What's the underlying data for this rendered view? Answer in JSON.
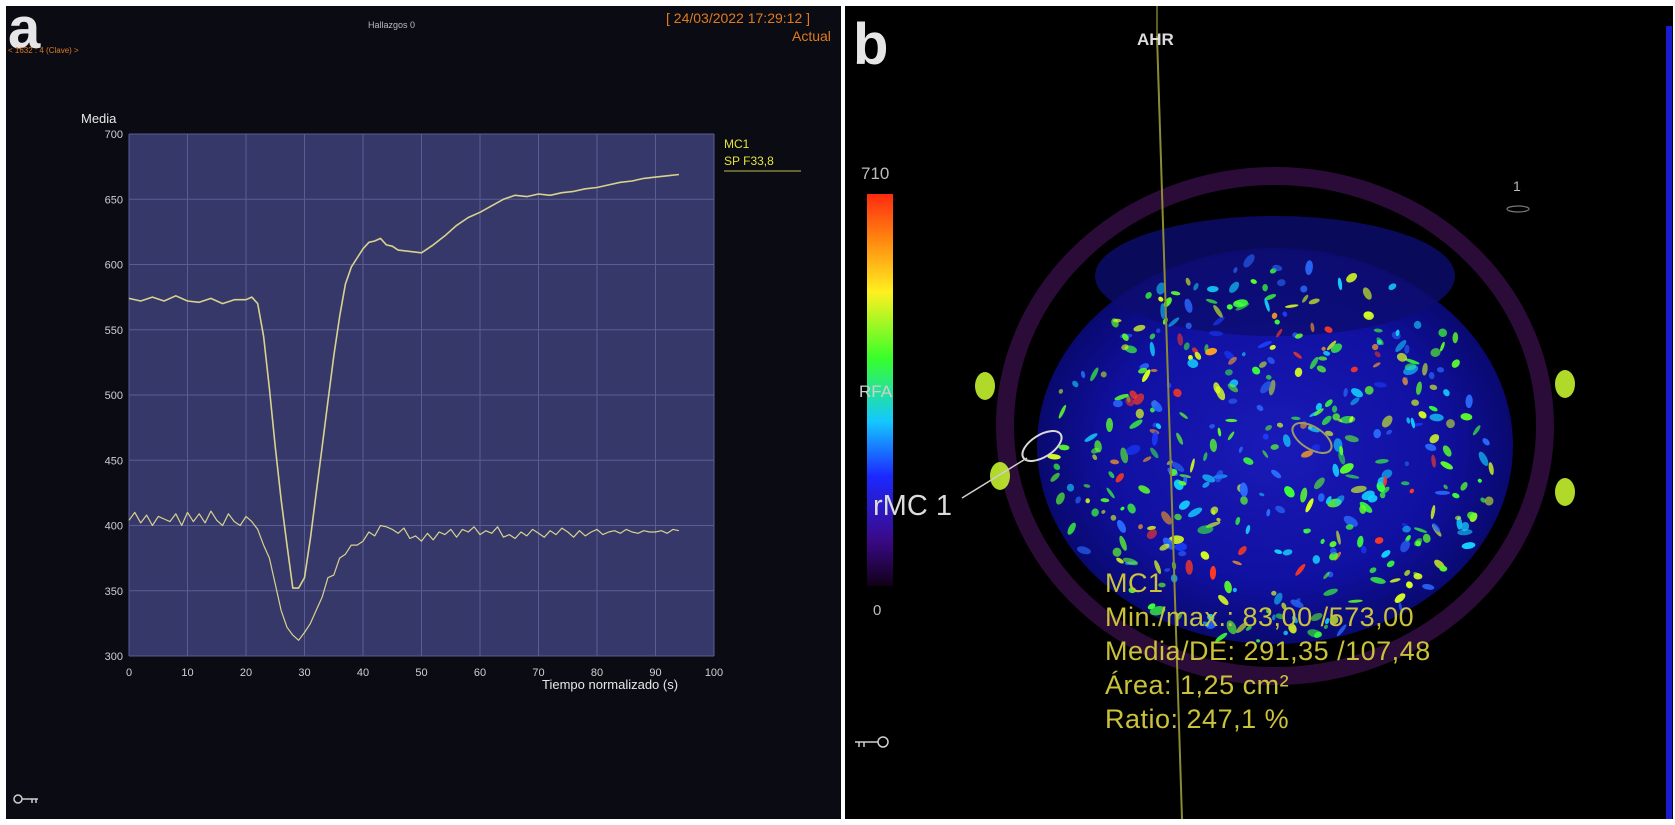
{
  "panel_a": {
    "label": "a",
    "header_center": "Hallazgos 0",
    "timestamp": "[ 24/03/2022 17:29:12 ]",
    "status": "Actual",
    "subheader": "< 1632 : 4 (Clave) >"
  },
  "panel_b": {
    "label": "b",
    "top_label": "AHR",
    "colorbar_max": "710",
    "colorbar_mid": "RFA",
    "colorbar_min": "0",
    "side_marker": "1",
    "roi_label": "rMC 1",
    "stats": {
      "name": "MC1",
      "minmax": "Min./max.: 83,00 /573,00",
      "media": "Media/DE: 291,35 /107,48",
      "area": "Área: 1,25 cm²",
      "ratio": "Ratio: 247,1 %"
    }
  },
  "colors": {
    "plot_bg": "#36386a",
    "grid": "#5a5c96",
    "curve": "#d8d28e",
    "legend": "#e5e33a",
    "timestamp": "#e07a1e"
  },
  "chart_data": {
    "type": "line",
    "ylabel": "Media",
    "xlabel": "Tiempo normalizado (s)",
    "xlim": [
      0,
      100
    ],
    "ylim": [
      300,
      700
    ],
    "xticks": [
      "0",
      "10",
      "20",
      "30",
      "40",
      "50",
      "60",
      "70",
      "80",
      "90",
      "100"
    ],
    "yticks": [
      "700",
      "650",
      "600",
      "550",
      "500",
      "450",
      "400",
      "350",
      "300"
    ],
    "legend": [
      "MC1",
      "SP F33,8"
    ],
    "series": [
      {
        "x": [
          0,
          2,
          4,
          6,
          8,
          10,
          12,
          14,
          16,
          18,
          20,
          21,
          22,
          23,
          24,
          25,
          26,
          27,
          28,
          29,
          30,
          31,
          32,
          33,
          34,
          35,
          36,
          37,
          38,
          39,
          40,
          41,
          42,
          43,
          44,
          45,
          46,
          48,
          50,
          52,
          54,
          56,
          58,
          60,
          62,
          64,
          66,
          68,
          70,
          72,
          74,
          76,
          78,
          80,
          82,
          84,
          86,
          88,
          90,
          92,
          94
        ],
        "y": [
          574,
          572,
          575,
          572,
          576,
          572,
          571,
          574,
          570,
          573,
          573,
          575,
          570,
          545,
          505,
          460,
          420,
          385,
          352,
          352,
          360,
          390,
          425,
          460,
          495,
          530,
          560,
          585,
          598,
          605,
          612,
          617,
          618,
          620,
          615,
          614,
          611,
          610,
          609,
          615,
          622,
          630,
          636,
          640,
          645,
          650,
          653,
          652,
          654,
          653,
          655,
          656,
          658,
          659,
          661,
          663,
          664,
          666,
          667,
          668,
          669
        ]
      },
      {
        "x": [
          0,
          1,
          2,
          3,
          4,
          5,
          6,
          7,
          8,
          9,
          10,
          11,
          12,
          13,
          14,
          15,
          16,
          17,
          18,
          19,
          20,
          21,
          22,
          23,
          24,
          25,
          26,
          27,
          28,
          29,
          30,
          31,
          32,
          33,
          34,
          35,
          36,
          37,
          38,
          39,
          40,
          41,
          42,
          43,
          44,
          45,
          46,
          47,
          48,
          49,
          50,
          51,
          52,
          53,
          54,
          55,
          56,
          57,
          58,
          59,
          60,
          61,
          62,
          63,
          64,
          65,
          66,
          67,
          68,
          69,
          70,
          71,
          72,
          73,
          74,
          75,
          76,
          77,
          78,
          79,
          80,
          81,
          82,
          83,
          84,
          85,
          86,
          87,
          88,
          89,
          90,
          91,
          92,
          93,
          94
        ],
        "y": [
          404,
          410,
          402,
          408,
          400,
          407,
          405,
          403,
          409,
          400,
          410,
          403,
          409,
          402,
          411,
          404,
          400,
          409,
          403,
          400,
          407,
          403,
          397,
          385,
          375,
          355,
          335,
          322,
          316,
          312,
          318,
          325,
          335,
          345,
          360,
          362,
          375,
          378,
          385,
          385,
          388,
          395,
          392,
          400,
          399,
          397,
          394,
          398,
          390,
          392,
          388,
          394,
          389,
          395,
          393,
          397,
          391,
          397,
          395,
          399,
          393,
          396,
          394,
          399,
          391,
          393,
          390,
          395,
          392,
          397,
          394,
          391,
          396,
          393,
          398,
          395,
          391,
          396,
          392,
          395,
          397,
          393,
          395,
          396,
          394,
          397,
          395,
          394,
          396,
          395,
          395,
          396,
          394,
          397,
          396
        ]
      }
    ]
  }
}
